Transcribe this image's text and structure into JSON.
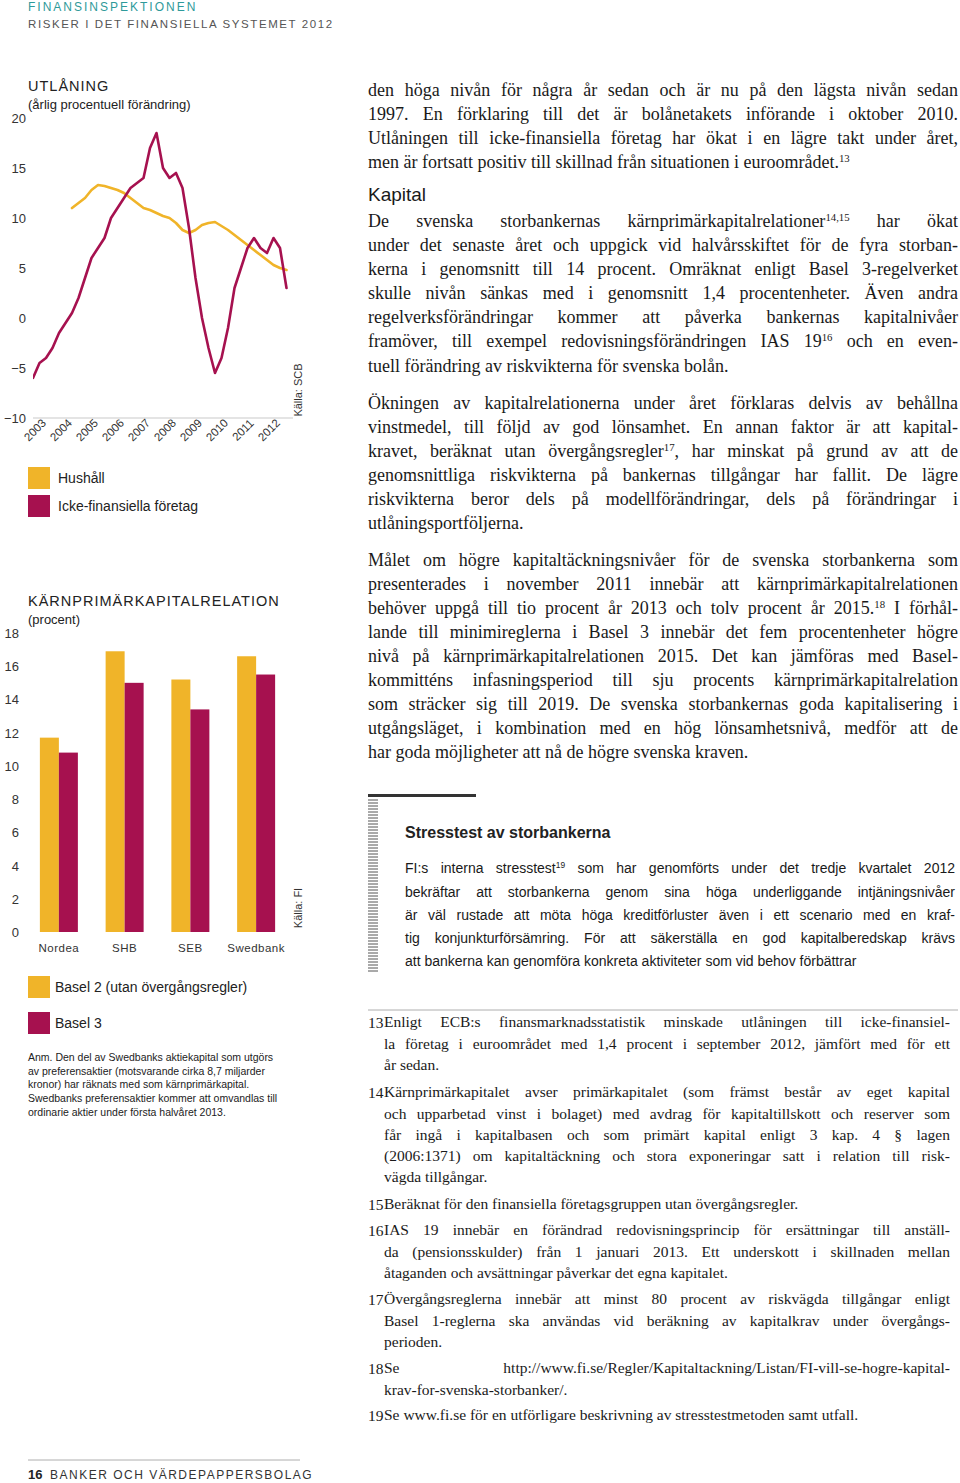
{
  "header": {
    "org": "FINANSINSPEKTIONEN",
    "title": "RISKER I DET FINANSIELLA SYSTEMET 2012"
  },
  "chart_data": [
    {
      "type": "line",
      "title": "UTLÅNING",
      "subtitle": "(årlig procentuell förändring)",
      "source": "Källa: SCB",
      "x": [
        2003,
        2003.25,
        2003.5,
        2003.75,
        2004,
        2004.25,
        2004.5,
        2004.75,
        2005,
        2005.25,
        2005.5,
        2005.75,
        2006,
        2006.25,
        2006.5,
        2006.75,
        2007,
        2007.25,
        2007.5,
        2007.75,
        2008,
        2008.25,
        2008.5,
        2008.75,
        2009,
        2009.25,
        2009.5,
        2009.75,
        2010,
        2010.25,
        2010.5,
        2010.75,
        2011,
        2011.25,
        2011.5,
        2011.75,
        2012,
        2012.25,
        2012.5,
        2012.75
      ],
      "series": [
        {
          "name": "Hushåll",
          "color": "#f0b429",
          "values": [
            null,
            null,
            null,
            null,
            null,
            null,
            11,
            11.5,
            12,
            12.8,
            13.3,
            13.2,
            13,
            12.8,
            12.5,
            12,
            11.5,
            11,
            10.8,
            10.5,
            10.2,
            10,
            9.5,
            8.8,
            8.5,
            8.8,
            9.3,
            9.5,
            9.6,
            9.2,
            8.8,
            8.3,
            7.8,
            7.3,
            6.8,
            6.3,
            5.8,
            5.3,
            5.0,
            4.8
          ]
        },
        {
          "name": "Icke-finansiella företag",
          "color": "#a6114f",
          "values": [
            -6,
            -4.5,
            -4,
            -3,
            -1.5,
            -0.5,
            0.5,
            2,
            4,
            6,
            7,
            8,
            10,
            11,
            12,
            13,
            13.5,
            14,
            17,
            18.5,
            15,
            14,
            14.5,
            13,
            9,
            4,
            0,
            -3,
            -5.5,
            -4,
            -1,
            3,
            5,
            7,
            8,
            7,
            6.5,
            8,
            7,
            3
          ]
        }
      ],
      "xlim": [
        2003,
        2013
      ],
      "xticks": [
        2003,
        2004,
        2005,
        2006,
        2007,
        2008,
        2009,
        2010,
        2011,
        2012
      ],
      "ylim": [
        -10,
        20
      ],
      "yticks": [
        {
          "value": -10,
          "label": "−10"
        },
        {
          "value": -5,
          "label": "−5"
        },
        0,
        5,
        10,
        15,
        20
      ],
      "grid": false
    },
    {
      "type": "bar",
      "title": "KÄRNPRIMÄRKAPITALRELATION",
      "subtitle": "(procent)",
      "source": "Källa: FI",
      "categories": [
        "Nordea",
        "SHB",
        "SEB",
        "Swedbank"
      ],
      "series": [
        {
          "name": "Basel 2 (utan övergångsregler)",
          "color": "#f0b429",
          "values": [
            11.7,
            16.9,
            15.2,
            16.6
          ]
        },
        {
          "name": "Basel 3",
          "color": "#a6114f",
          "values": [
            10.8,
            15.0,
            13.4,
            15.5
          ]
        }
      ],
      "ylim": [
        0,
        18
      ],
      "yticks": [
        0,
        2,
        4,
        6,
        8,
        10,
        12,
        14,
        16,
        18
      ],
      "grid": false,
      "note": [
        "Anm. Den del av Swedbanks aktiekapital som utgörs",
        "av preferensaktier (motsvarande cirka 8,7 miljarder",
        "kronor) har räknats med som kärnprimärkapital.",
        "Swedbanks preferensaktier kommer att omvandlas till",
        "ordinarie aktier under första halvåret 2013."
      ]
    }
  ],
  "body": {
    "paragraph_1": [
      "den höga nivån för några år sedan och är nu på den lägsta nivån sedan",
      "1997. En förklaring till det är bolånetakets införande i oktober 2010.",
      "Utlåningen till icke-finansiella företag har ökat i en lägre takt under året,",
      [
        "men är fortsatt positiv till skillnad från situationen i euroområdet.",
        {
          "sup": "13"
        }
      ]
    ],
    "heading": "Kapital",
    "paragraph_2": [
      [
        "De svenska storbankernas kärnprimärkapitalrelationer",
        {
          "sup": "14,15"
        },
        " har ökat"
      ],
      "under det senaste året och uppgick vid halvårsskiftet för de fyra storban-",
      "kerna i genomsnitt till 14 procent. Omräknat enligt Basel 3-regelverket",
      "skulle nivån sänkas med i genomsnitt 1,4 procentenheter. Även andra",
      "regelverksförändringar kommer att påverka bankernas kapitalnivåer",
      [
        "framöver, till exempel redovisningsförändringen IAS 19",
        {
          "sup": "16"
        },
        " och en even-"
      ],
      "tuell förändring av riskvikterna för svenska bolån."
    ],
    "paragraph_3": [
      "Ökningen av kapitalrelationerna under året förklaras delvis av behållna",
      "vinstmedel, till följd av god lönsamhet. En annan faktor är att kapital-",
      [
        "kravet, beräknat utan övergångsregler",
        {
          "sup": "17"
        },
        ", har minskat på grund av att de"
      ],
      "genomsnittliga riskvikterna på bankernas tillgångar har fallit. De lägre",
      "riskvikterna beror dels på modellförändringar, dels på förändringar i",
      "utlåningsportföljerna."
    ],
    "paragraph_4": [
      "Målet om högre kapitaltäckningsnivåer för de svenska storbankerna som",
      "presenterades i november 2011 innebär att kärnprimärkapitalrelationen",
      [
        "behöver uppgå till tio procent år 2013 och tolv procent år 2015.",
        {
          "sup": "18"
        },
        " I förhål-"
      ],
      "lande till minimireglerna i Basel 3 innebär det fem procentenheter högre",
      "nivå på kärnprimärkapitalrelationen 2015. Det kan jämföras med Basel-",
      "kommitténs infasningsperiod till sju procents kärnprimärkapitalrelation",
      "som sträcker sig till 2019. De svenska storbankernas goda kapitalisering i",
      "utgångsläget, i kombination med en hög lönsamhetsnivå, medför att de",
      "har goda möjligheter att nå de högre svenska kraven."
    ]
  },
  "box": {
    "title": "Stresstest av storbankerna",
    "lines": [
      [
        "FI:s interna stresstest",
        {
          "sup": "19"
        },
        " som har genomförts under det tredje kvartalet 2012"
      ],
      "bekräftar att storbankerna genom sina höga underliggande intjäningsnivåer",
      "är väl rustade att möta höga kreditförluster även i ett scenario med en kraf-",
      "tig konjunkturförsämring. För att säkerställa en god kapitalberedskap krävs",
      "att bankerna kan genomföra konkreta aktiviteter som vid behov förbättrar"
    ]
  },
  "footnotes": [
    {
      "number": "13",
      "lines": [
        "Enligt ECB:s finansmarknadsstatistik minskade utlåningen till icke-finansiel-",
        "la företag i euroområdet med 1,4 procent i september 2012, jämfört med för ett",
        "år sedan."
      ]
    },
    {
      "number": "14",
      "lines": [
        "Kärnprimärkapitalet avser primärkapitalet (som främst består av eget kapital",
        "och upparbetad vinst i bolaget) med avdrag för kapitaltillskott och reserver som",
        "får ingå i kapitalbasen och som primärt kapital enligt 3 kap. 4 § lagen",
        "(2006:1371) om kapitaltäckning och stora exponeringar satt i relation till risk-",
        "vägda tillgångar."
      ]
    },
    {
      "number": "15",
      "lines": [
        "Beräknat för den finansiella företagsgruppen utan övergångsregler."
      ]
    },
    {
      "number": "16",
      "lines": [
        "IAS 19 innebär en förändrad redovisningsprincip för ersättningar till anställ-",
        "da (pensionsskulder) från 1 januari 2013. Ett underskott i skillnaden mellan",
        "åtaganden och avsättningar påverkar det egna kapitalet."
      ]
    },
    {
      "number": "17",
      "lines": [
        "Övergångsreglerna innebär att minst 80 procent av riskvägda tillgångar enligt",
        "Basel 1-reglerna ska användas vid beräkning av kapitalkrav under övergångs-",
        "perioden."
      ]
    },
    {
      "number": "18",
      "lines": [
        "Se http://www.fi.se/Regler/Kapitaltackning/Listan/FI-vill-se-hogre-kapital-",
        "krav-for-svenska-storbanker/."
      ]
    },
    {
      "number": "19",
      "lines": [
        "Se www.fi.se för en utförligare beskrivning av stresstestmetoden samt utfall."
      ]
    }
  ],
  "footer": {
    "page": "16",
    "section": "BANKER OCH VÄRDEPAPPERSBOLAG"
  }
}
